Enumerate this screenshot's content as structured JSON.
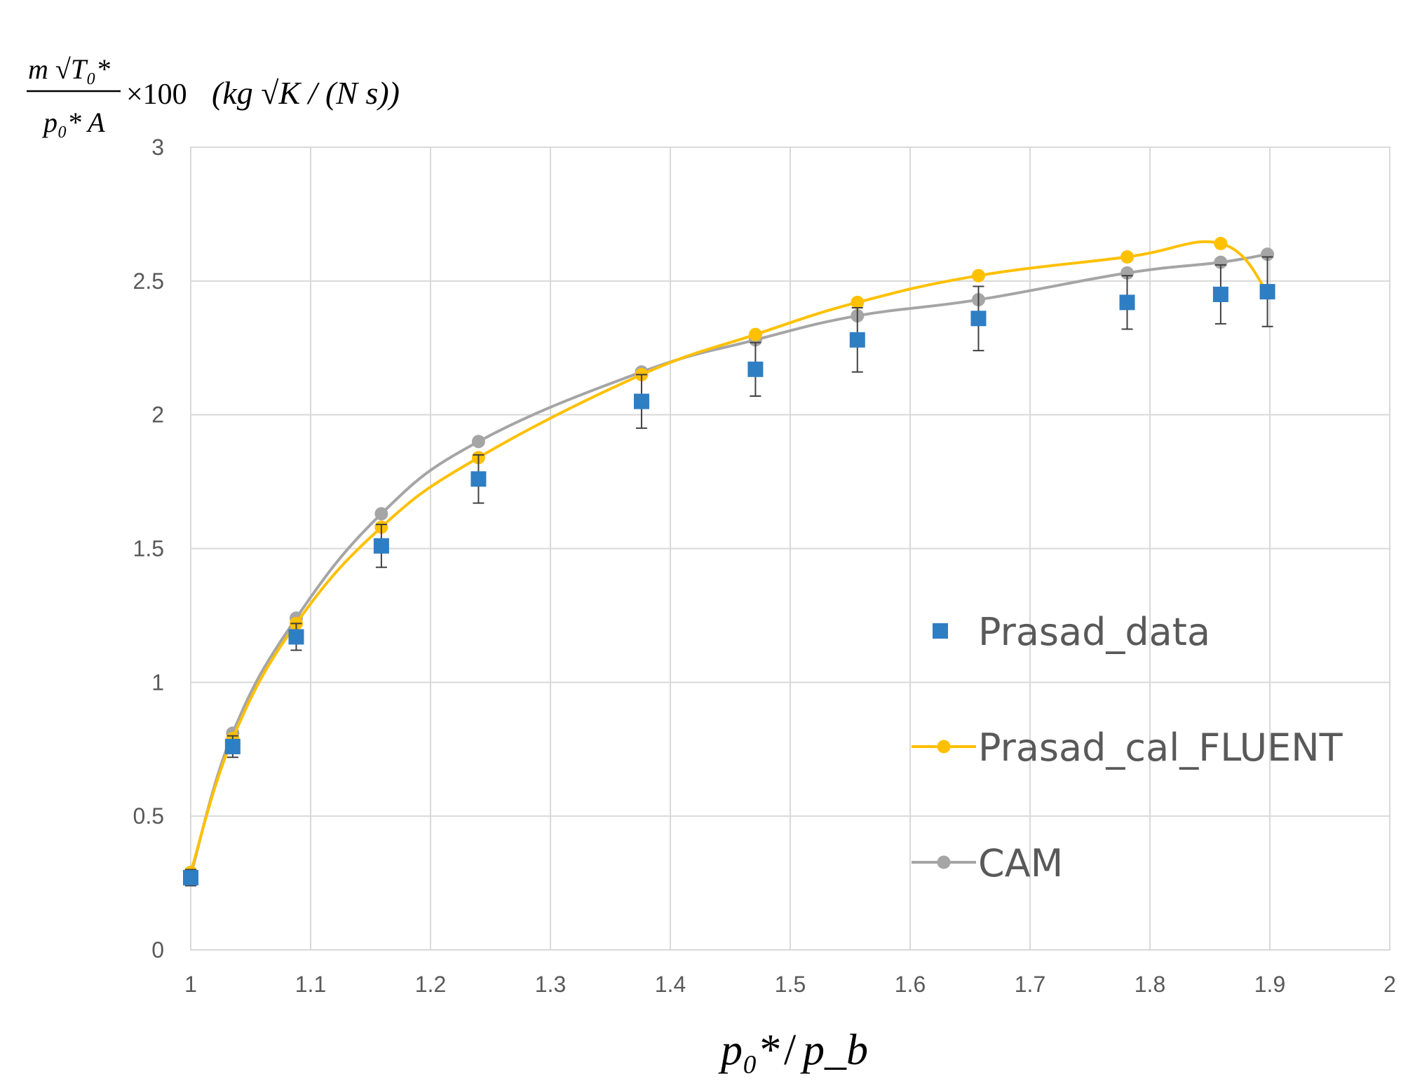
{
  "chart_data": {
    "type": "line",
    "title": "",
    "ylabel": {
      "numerator": "m √T₀*",
      "denominator": "p₀* A",
      "factor": "×100",
      "units": "(kg √K / (N s))"
    },
    "xlabel": {
      "num": "p₀*",
      "slash": "/",
      "den": "p_b"
    },
    "xlim": [
      1,
      2
    ],
    "ylim": [
      0,
      3
    ],
    "x_ticks": [
      "1",
      "1.1",
      "1.2",
      "1.3",
      "1.4",
      "1.5",
      "1.6",
      "1.7",
      "1.8",
      "1.9",
      "2"
    ],
    "y_ticks": [
      "0",
      "0.5",
      "1",
      "1.5",
      "2",
      "2.5",
      "3"
    ],
    "grid": true,
    "legend_position": "right",
    "series": [
      {
        "name": "Prasad_data",
        "kind": "marker-square",
        "color": "#2E7EC4",
        "x": [
          1.0,
          1.035,
          1.088,
          1.159,
          1.24,
          1.376,
          1.471,
          1.556,
          1.657,
          1.781,
          1.859,
          1.898
        ],
        "y": [
          0.27,
          0.76,
          1.17,
          1.51,
          1.76,
          2.05,
          2.17,
          2.28,
          2.36,
          2.42,
          2.45,
          2.46
        ],
        "err": [
          0.03,
          0.04,
          0.05,
          0.08,
          0.09,
          0.1,
          0.1,
          0.12,
          0.12,
          0.1,
          0.11,
          0.13
        ]
      },
      {
        "name": "Prasad_cal_FLUENT",
        "kind": "line-marker",
        "color": "#FFC000",
        "x": [
          1.0,
          1.035,
          1.088,
          1.159,
          1.24,
          1.376,
          1.471,
          1.556,
          1.657,
          1.781,
          1.859,
          1.898
        ],
        "y": [
          0.29,
          0.79,
          1.22,
          1.58,
          1.84,
          2.15,
          2.3,
          2.42,
          2.52,
          2.59,
          2.64,
          2.46
        ]
      },
      {
        "name": "CAM",
        "kind": "line-marker",
        "color": "#A5A5A5",
        "x": [
          1.0,
          1.035,
          1.088,
          1.159,
          1.24,
          1.376,
          1.471,
          1.556,
          1.657,
          1.781,
          1.859,
          1.898
        ],
        "y": [
          0.28,
          0.81,
          1.24,
          1.63,
          1.9,
          2.16,
          2.28,
          2.37,
          2.43,
          2.53,
          2.57,
          2.6
        ]
      }
    ]
  }
}
